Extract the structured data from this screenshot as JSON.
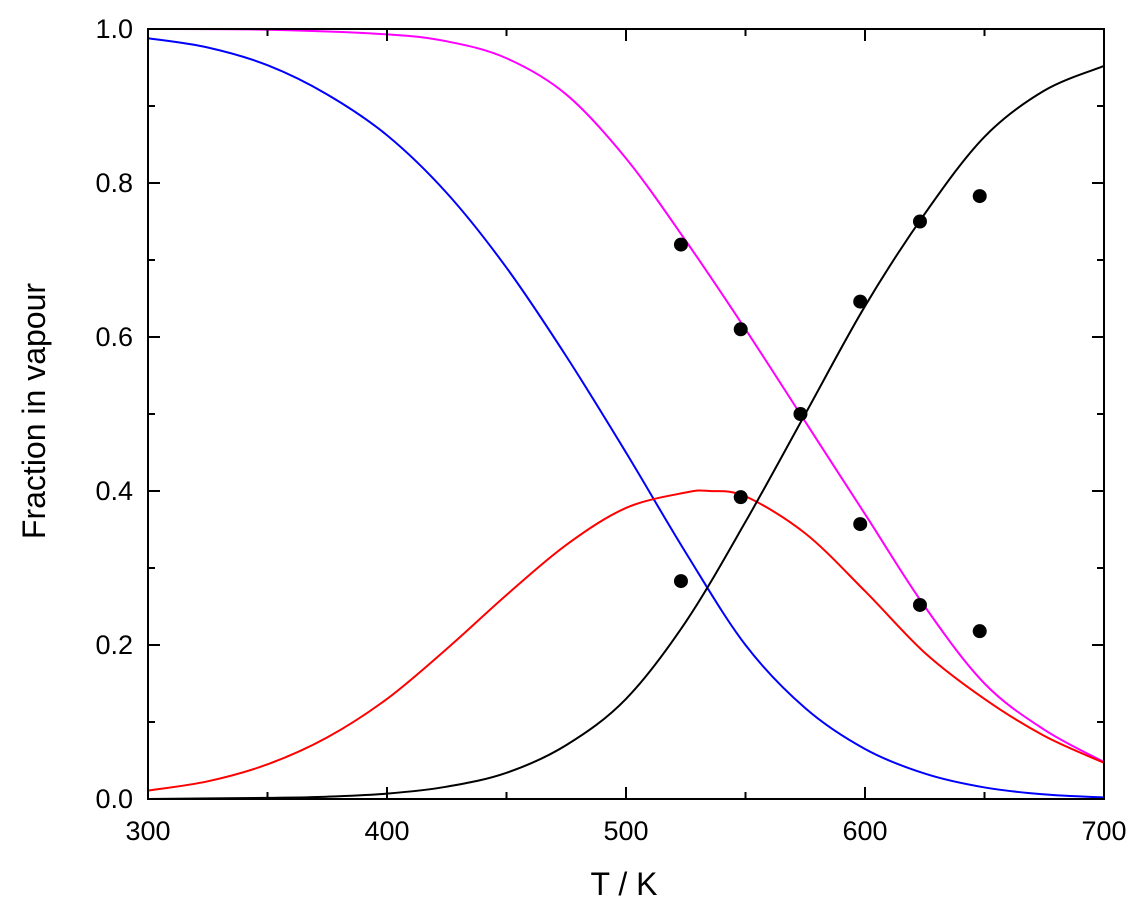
{
  "chart_data": {
    "type": "line",
    "xlabel": "T / K",
    "ylabel": "Fraction in vapour",
    "xlim": [
      300,
      700
    ],
    "ylim": [
      0.0,
      1.0
    ],
    "x_ticks": [
      "300",
      "400",
      "500",
      "600",
      "700"
    ],
    "y_ticks": [
      "0.0",
      "0.2",
      "0.4",
      "0.6",
      "0.8",
      "1.0"
    ],
    "grid": false,
    "legend": "none",
    "series": [
      {
        "color": "#0000ff",
        "style": "line",
        "x": [
          300,
          325,
          350,
          375,
          400,
          425,
          450,
          475,
          500,
          525,
          550,
          575,
          600,
          625,
          650,
          675,
          700
        ],
        "y": [
          0.988,
          0.976,
          0.953,
          0.915,
          0.862,
          0.787,
          0.69,
          0.575,
          0.45,
          0.32,
          0.2,
          0.118,
          0.065,
          0.033,
          0.015,
          0.006,
          0.002
        ]
      },
      {
        "color": "#ff00ff",
        "style": "line",
        "x": [
          300,
          350,
          400,
          425,
          450,
          475,
          500,
          525,
          550,
          575,
          600,
          625,
          650,
          675,
          700
        ],
        "y": [
          1.0,
          0.999,
          0.993,
          0.984,
          0.962,
          0.915,
          0.832,
          0.725,
          0.61,
          0.49,
          0.37,
          0.25,
          0.15,
          0.09,
          0.048
        ]
      },
      {
        "color": "#ff0000",
        "style": "line",
        "x": [
          300,
          325,
          350,
          375,
          400,
          425,
          450,
          475,
          500,
          525,
          535,
          550,
          575,
          600,
          625,
          650,
          675,
          700
        ],
        "y": [
          0.011,
          0.023,
          0.045,
          0.08,
          0.13,
          0.195,
          0.265,
          0.33,
          0.378,
          0.398,
          0.4,
          0.393,
          0.345,
          0.27,
          0.19,
          0.13,
          0.082,
          0.047
        ]
      },
      {
        "color": "#000000",
        "style": "line",
        "x": [
          300,
          350,
          375,
          400,
          425,
          450,
          475,
          500,
          525,
          550,
          575,
          600,
          625,
          650,
          675,
          700
        ],
        "y": [
          0.0,
          0.0015,
          0.003,
          0.007,
          0.016,
          0.034,
          0.07,
          0.13,
          0.23,
          0.36,
          0.5,
          0.64,
          0.76,
          0.86,
          0.92,
          0.952
        ]
      },
      {
        "color": "#000000",
        "style": "markers",
        "x": [
          523,
          523,
          548,
          548,
          573,
          598,
          598,
          623,
          623,
          648,
          648
        ],
        "y": [
          0.72,
          0.283,
          0.61,
          0.392,
          0.5,
          0.646,
          0.357,
          0.75,
          0.252,
          0.783,
          0.218
        ]
      }
    ]
  }
}
